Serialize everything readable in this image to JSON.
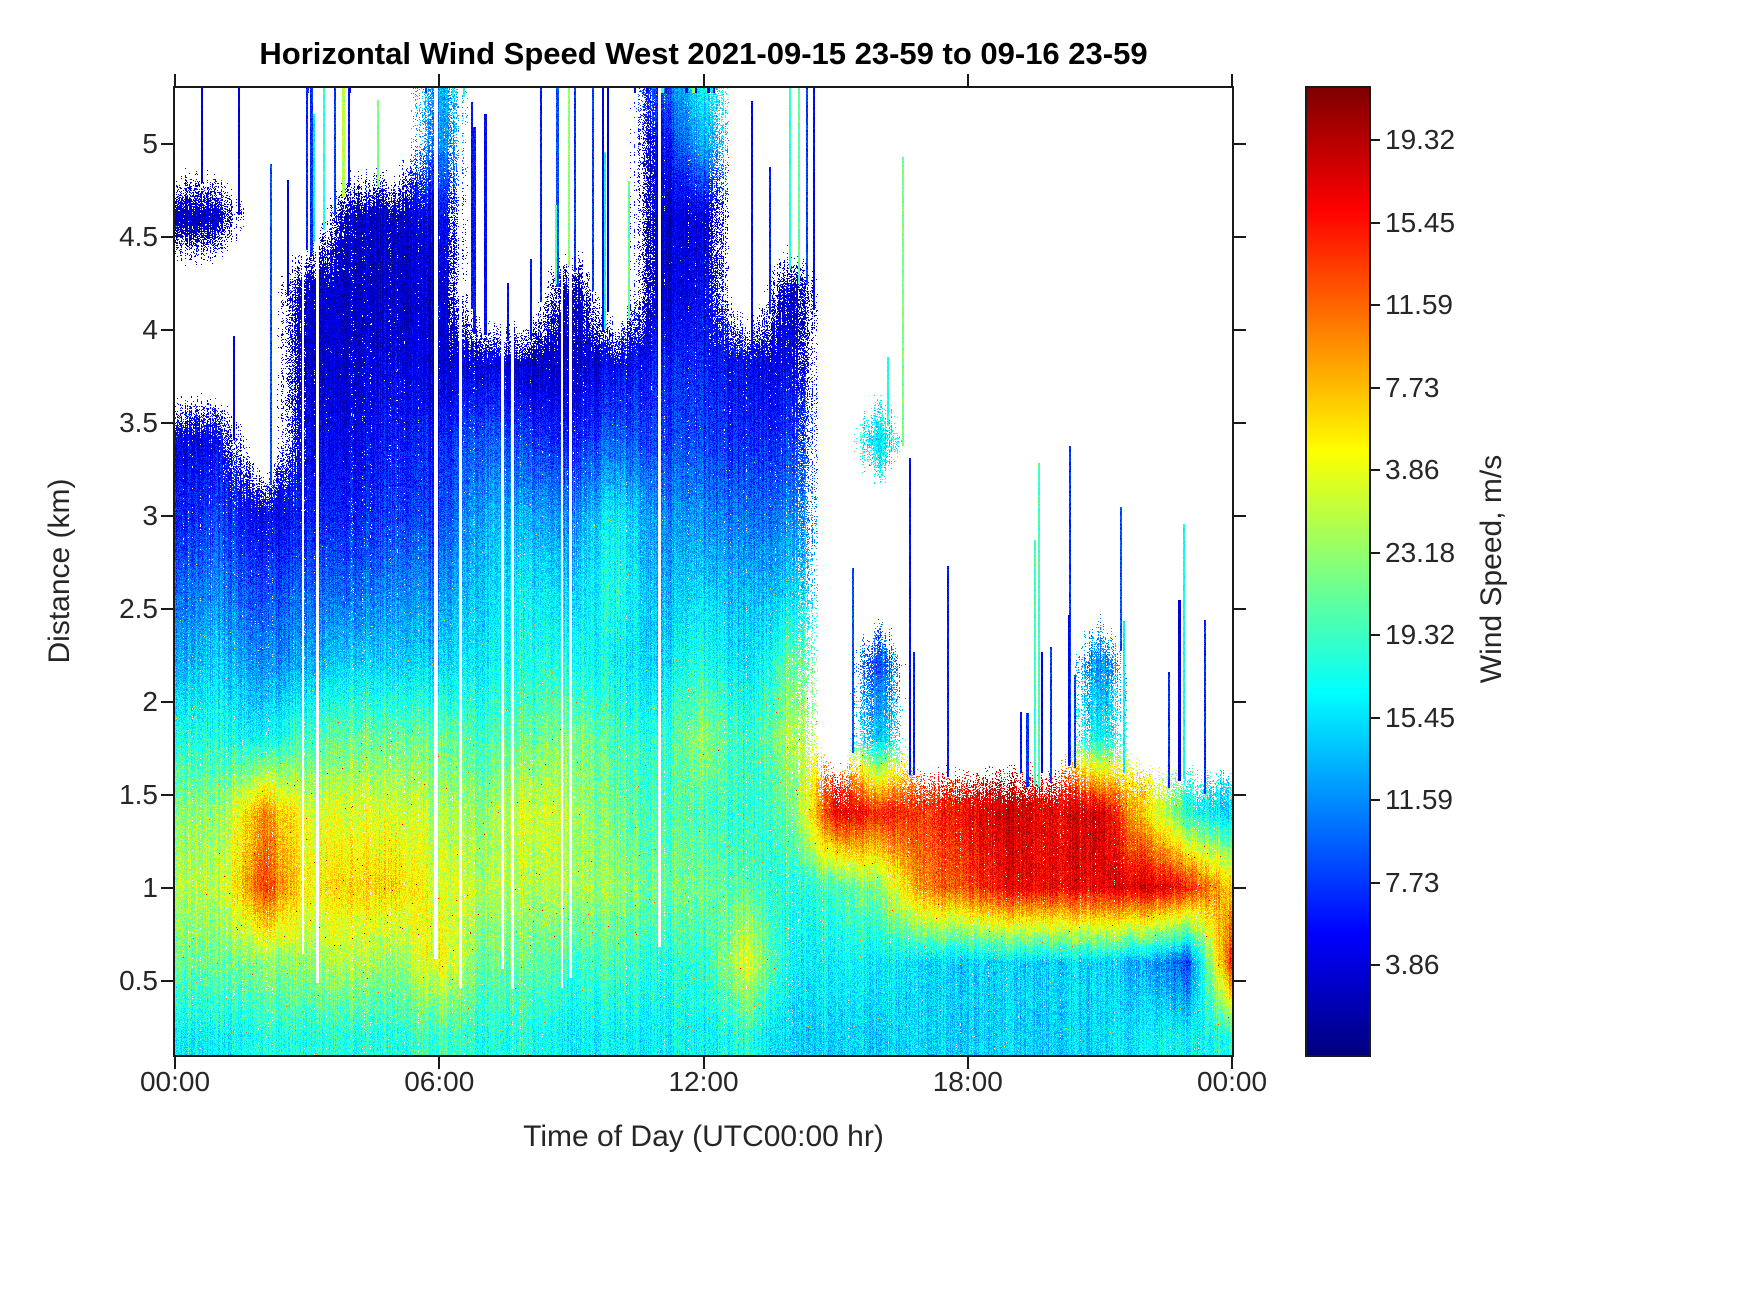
{
  "figure": {
    "title": "Horizontal Wind Speed West 2021-09-15 23-59 to 09-16 23-59",
    "xlabel": "Time of Day (UTC00:00 hr)",
    "ylabel": "Distance (km)"
  },
  "colorbar": {
    "label": "Wind Speed, m/s",
    "ticks_top_to_bottom": [
      "19.32",
      "15.45",
      "11.59",
      "7.73",
      "3.86",
      "23.18",
      "19.32",
      "15.45",
      "11.59",
      "7.73",
      "3.86"
    ]
  },
  "chart_data": {
    "type": "heatmap",
    "title": "Horizontal Wind Speed West 2021-09-15 23-59 to 09-16 23-59",
    "xlabel": "Time of Day (UTC00:00 hr)",
    "ylabel": "Distance (km)",
    "legend": "none",
    "grid_lines": false,
    "colormap": "jet",
    "no_data_color": "#ffffff",
    "x_range_hours": [
      0,
      24
    ],
    "y_range_km": [
      0.1,
      5.3
    ],
    "value_range_m_s": [
      0,
      27
    ],
    "x_ticks": {
      "values": [
        0,
        6,
        12,
        18,
        24
      ],
      "labels": [
        "00:00",
        "06:00",
        "12:00",
        "18:00",
        "00:00"
      ]
    },
    "y_ticks": {
      "values": [
        0.5,
        1,
        1.5,
        2,
        2.5,
        3,
        3.5,
        4,
        4.5,
        5
      ],
      "labels": [
        "0.5",
        "1",
        "1.5",
        "2",
        "2.5",
        "3",
        "3.5",
        "4",
        "4.5",
        "5"
      ]
    },
    "grid": {
      "times_hours": [
        0,
        1,
        2,
        3,
        4,
        5,
        6,
        7,
        8,
        9,
        10,
        11,
        12,
        13,
        14,
        15,
        16,
        17,
        18,
        19,
        20,
        21,
        22,
        23,
        24
      ],
      "altitudes_km": [
        0.2,
        0.6,
        1.0,
        1.4,
        1.8,
        2.2,
        2.6,
        3.0,
        3.4,
        3.8,
        4.2,
        4.6,
        5.0,
        5.3
      ],
      "wind_speed_m_s": [
        [
          10,
          10,
          11,
          11,
          11,
          11,
          12,
          11,
          11,
          10,
          10,
          10,
          10,
          11,
          9,
          9,
          9,
          9,
          9,
          9,
          9,
          9,
          10,
          10,
          11
        ],
        [
          13,
          13,
          14,
          14,
          15,
          14,
          17,
          13,
          13,
          12,
          12,
          11,
          11,
          16,
          10,
          10,
          10,
          9,
          9,
          9,
          9,
          9,
          8,
          5,
          23
        ],
        [
          15,
          15,
          22,
          17,
          18,
          18,
          16,
          15,
          15,
          15,
          14,
          13,
          13,
          12,
          11,
          12,
          14,
          20,
          22,
          24,
          24,
          24,
          25,
          23,
          18
        ],
        [
          14,
          14,
          20,
          16,
          16,
          16,
          15,
          14,
          16,
          15,
          13,
          12,
          12,
          11,
          13,
          24,
          23,
          22,
          24,
          25,
          24,
          25,
          18,
          11,
          9
        ],
        [
          11,
          11,
          10,
          12,
          13,
          13,
          13,
          12,
          13,
          14,
          12,
          11,
          14,
          11,
          15,
          null,
          9,
          null,
          null,
          null,
          null,
          10,
          null,
          null,
          null
        ],
        [
          8,
          9,
          7,
          8,
          9,
          9,
          9,
          10,
          11,
          11,
          10,
          9,
          11,
          9,
          13,
          null,
          6,
          null,
          null,
          null,
          null,
          7,
          null,
          null,
          null
        ],
        [
          6,
          7,
          5,
          6,
          6,
          7,
          7,
          9,
          10,
          9,
          11,
          8,
          9,
          8,
          9,
          null,
          null,
          null,
          null,
          null,
          null,
          null,
          null,
          null,
          null
        ],
        [
          4,
          5,
          3,
          4,
          4,
          5,
          5,
          8,
          8,
          7,
          10,
          7,
          7,
          6,
          7,
          null,
          null,
          null,
          null,
          null,
          null,
          null,
          null,
          null,
          null
        ],
        [
          3,
          3,
          null,
          3,
          3,
          4,
          4,
          6,
          5,
          4,
          6,
          5,
          5,
          4,
          5,
          null,
          10,
          null,
          null,
          null,
          null,
          null,
          null,
          null,
          null
        ],
        [
          null,
          null,
          null,
          2,
          2,
          3,
          2,
          3,
          2,
          2,
          3,
          4,
          4,
          3,
          3,
          null,
          null,
          null,
          null,
          null,
          null,
          null,
          null,
          null,
          null
        ],
        [
          null,
          null,
          null,
          2,
          2,
          2,
          2,
          null,
          null,
          2,
          null,
          2,
          3,
          null,
          2,
          null,
          null,
          null,
          null,
          null,
          null,
          null,
          null,
          null,
          null
        ],
        [
          2,
          2,
          null,
          null,
          2,
          2,
          3,
          null,
          null,
          null,
          null,
          2,
          2,
          null,
          null,
          null,
          null,
          null,
          null,
          null,
          null,
          null,
          null,
          null,
          null
        ],
        [
          null,
          null,
          null,
          null,
          null,
          null,
          7,
          null,
          null,
          null,
          null,
          3,
          8,
          null,
          null,
          null,
          null,
          null,
          null,
          null,
          null,
          null,
          null,
          null,
          null
        ],
        [
          null,
          null,
          null,
          null,
          null,
          null,
          8,
          null,
          null,
          null,
          null,
          5,
          10,
          null,
          null,
          null,
          null,
          null,
          null,
          null,
          null,
          null,
          null,
          null,
          null
        ]
      ]
    }
  }
}
